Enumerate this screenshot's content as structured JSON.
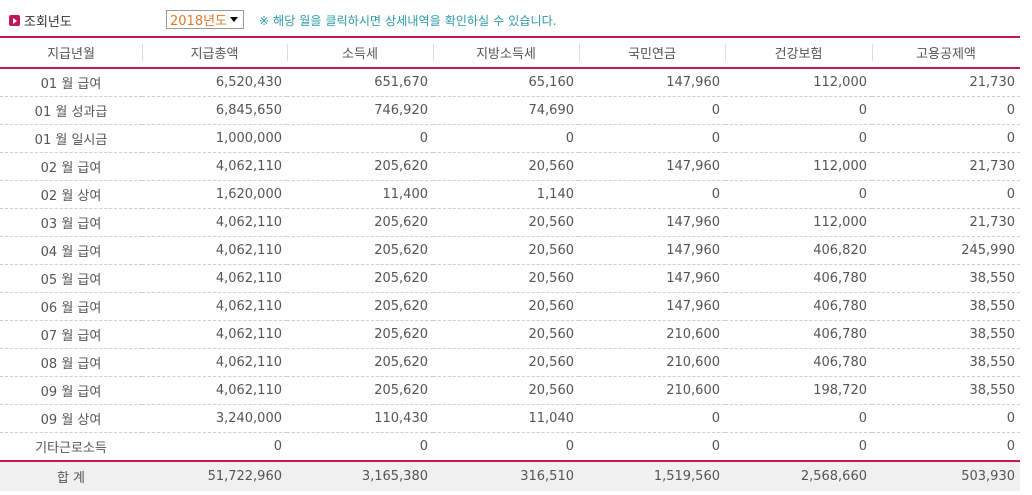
{
  "filter": {
    "label": "조회년도",
    "selected_year": "2018년도",
    "notice": "※  해당 월을 클릭하시면 상세내역을 확인하실 수 있습니다."
  },
  "colors": {
    "accent": "#c2185b",
    "notice_text": "#2a9aa8",
    "select_text": "#e0782b"
  },
  "table": {
    "headers": [
      "지급년월",
      "지급총액",
      "소득세",
      "지방소득세",
      "국민연금",
      "건강보험",
      "고용공제액"
    ],
    "rows": [
      [
        "01 월 급여",
        "6,520,430",
        "651,670",
        "65,160",
        "147,960",
        "112,000",
        "21,730"
      ],
      [
        "01 월 성과급",
        "6,845,650",
        "746,920",
        "74,690",
        "0",
        "0",
        "0"
      ],
      [
        "01 월 일시금",
        "1,000,000",
        "0",
        "0",
        "0",
        "0",
        "0"
      ],
      [
        "02 월 급여",
        "4,062,110",
        "205,620",
        "20,560",
        "147,960",
        "112,000",
        "21,730"
      ],
      [
        "02 월 상여",
        "1,620,000",
        "11,400",
        "1,140",
        "0",
        "0",
        "0"
      ],
      [
        "03 월 급여",
        "4,062,110",
        "205,620",
        "20,560",
        "147,960",
        "112,000",
        "21,730"
      ],
      [
        "04 월 급여",
        "4,062,110",
        "205,620",
        "20,560",
        "147,960",
        "406,820",
        "245,990"
      ],
      [
        "05 월 급여",
        "4,062,110",
        "205,620",
        "20,560",
        "147,960",
        "406,780",
        "38,550"
      ],
      [
        "06 월 급여",
        "4,062,110",
        "205,620",
        "20,560",
        "147,960",
        "406,780",
        "38,550"
      ],
      [
        "07 월 급여",
        "4,062,110",
        "205,620",
        "20,560",
        "210,600",
        "406,780",
        "38,550"
      ],
      [
        "08 월 급여",
        "4,062,110",
        "205,620",
        "20,560",
        "210,600",
        "406,780",
        "38,550"
      ],
      [
        "09 월 급여",
        "4,062,110",
        "205,620",
        "20,560",
        "210,600",
        "198,720",
        "38,550"
      ],
      [
        "09 월 상여",
        "3,240,000",
        "110,430",
        "11,040",
        "0",
        "0",
        "0"
      ],
      [
        "기타근로소득",
        "0",
        "0",
        "0",
        "0",
        "0",
        "0"
      ]
    ],
    "total": [
      "합 계",
      "51,722,960",
      "3,165,380",
      "316,510",
      "1,519,560",
      "2,568,660",
      "503,930"
    ]
  }
}
